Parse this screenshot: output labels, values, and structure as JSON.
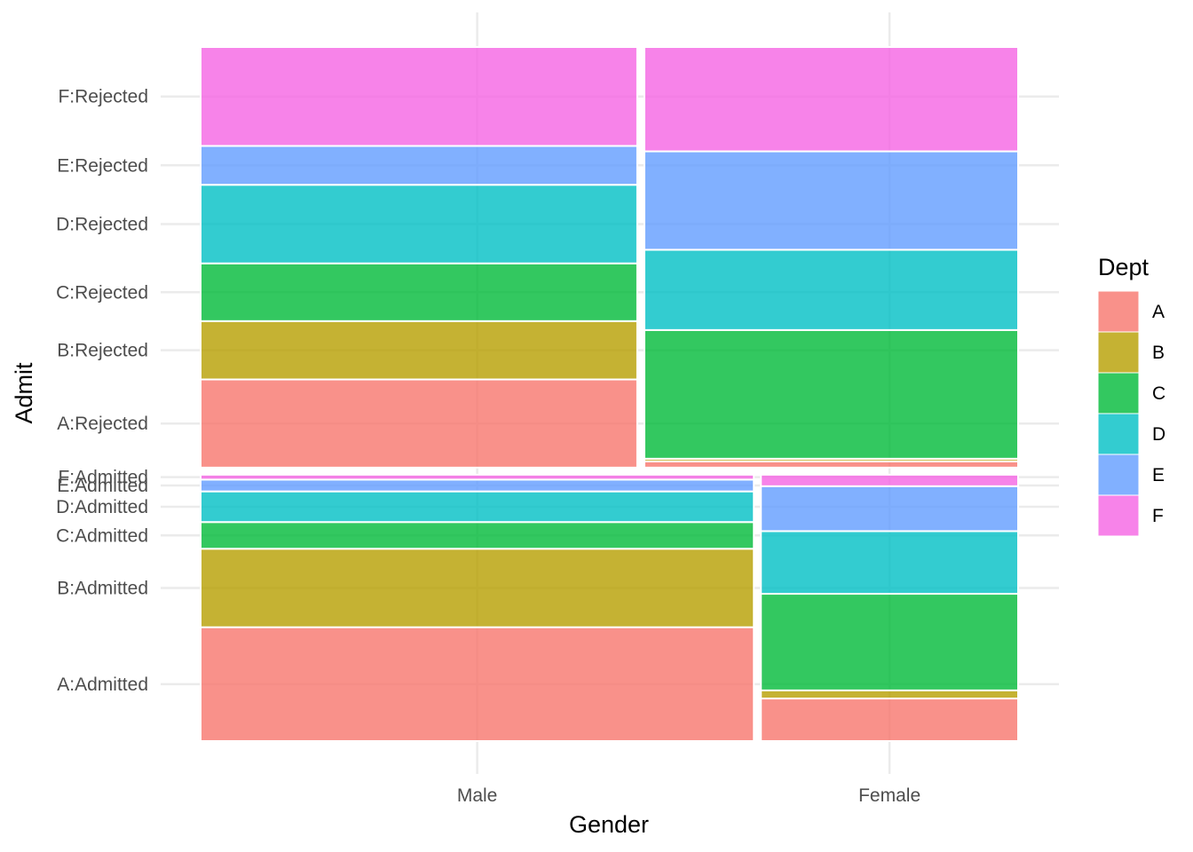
{
  "chart_data": {
    "type": "mosaic",
    "xlabel": "Gender",
    "ylabel": "Admit",
    "x_categories": [
      "Male",
      "Female"
    ],
    "y_tick_labels": [
      "A:Admitted",
      "B:Admitted",
      "C:Admitted",
      "D:Admitted",
      "E:Admitted",
      "F:Admitted",
      "A:Rejected",
      "B:Rejected",
      "C:Rejected",
      "D:Rejected",
      "E:Rejected",
      "F:Rejected"
    ],
    "legend": {
      "title": "Dept",
      "position": "right",
      "entries": [
        {
          "label": "A",
          "color": "#F8766D"
        },
        {
          "label": "B",
          "color": "#B79F00"
        },
        {
          "label": "C",
          "color": "#00BA38"
        },
        {
          "label": "D",
          "color": "#00BFC4"
        },
        {
          "label": "E",
          "color": "#619CFF"
        },
        {
          "label": "F",
          "color": "#F564E3"
        }
      ]
    },
    "grid": true,
    "admit_levels": [
      "Admitted",
      "Rejected"
    ],
    "depts": [
      "A",
      "B",
      "C",
      "D",
      "E",
      "F"
    ],
    "counts": {
      "Admitted": {
        "Male": {
          "A": 512,
          "B": 353,
          "C": 120,
          "D": 138,
          "E": 53,
          "F": 22
        },
        "Female": {
          "A": 89,
          "B": 17,
          "C": 202,
          "D": 131,
          "E": 94,
          "F": 24
        }
      },
      "Rejected": {
        "Male": {
          "A": 313,
          "B": 207,
          "C": 205,
          "D": 279,
          "E": 138,
          "F": 351
        },
        "Female": {
          "A": 19,
          "B": 8,
          "C": 391,
          "D": 244,
          "E": 299,
          "F": 317
        }
      }
    }
  }
}
